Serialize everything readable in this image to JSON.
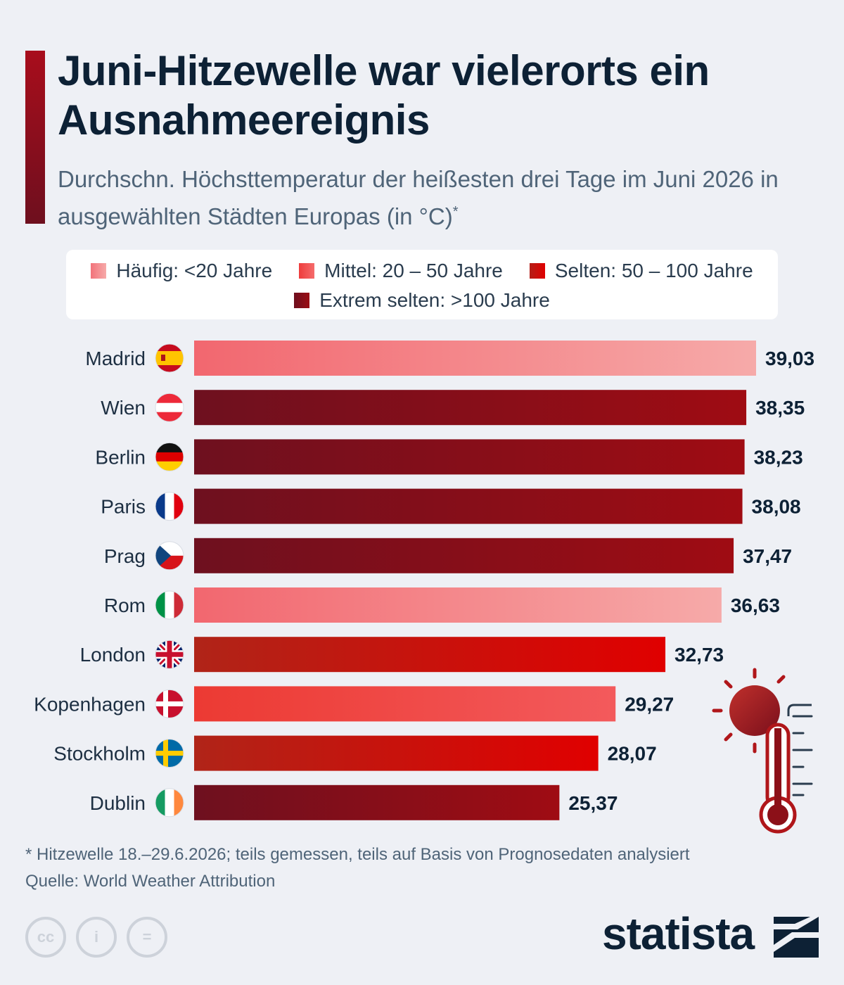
{
  "header": {
    "title": "Juni-Hitzewelle war vielerorts ein Ausnahmeereignis",
    "subtitle": "Durchschn. Höchsttemperatur der heißesten drei Tage im Juni 2026 in ausgewählten Städten Europas (in °C)",
    "subtitle_mark": "*"
  },
  "legend": [
    {
      "label": "Häufig: <20 Jahre",
      "color": "#f2737b"
    },
    {
      "label": "Mittel: 20 – 50 Jahre",
      "color": "#ee3d3d"
    },
    {
      "label": "Selten: 50 – 100 Jahre",
      "color": "#c8170f"
    },
    {
      "label": "Extrem selten: >100 Jahre",
      "color": "#7a111d"
    }
  ],
  "chart_data": {
    "type": "bar",
    "orientation": "horizontal",
    "categories": [
      "Madrid",
      "Wien",
      "Berlin",
      "Paris",
      "Prag",
      "Rom",
      "London",
      "Kopenhagen",
      "Stockholm",
      "Dublin"
    ],
    "values": [
      39.03,
      38.35,
      38.23,
      38.08,
      37.47,
      36.63,
      32.73,
      29.27,
      28.07,
      25.37
    ],
    "value_labels": [
      "39,03",
      "38,35",
      "38,23",
      "38,08",
      "37,47",
      "36,63",
      "32,73",
      "29,27",
      "28,07",
      "25,37"
    ],
    "rarity": [
      "Häufig",
      "Extrem selten",
      "Extrem selten",
      "Extrem selten",
      "Extrem selten",
      "Häufig",
      "Selten",
      "Mittel",
      "Selten",
      "Extrem selten"
    ],
    "flags": [
      "spain-flag-icon",
      "austria-flag-icon",
      "germany-flag-icon",
      "france-flag-icon",
      "czechia-flag-icon",
      "italy-flag-icon",
      "uk-flag-icon",
      "denmark-flag-icon",
      "sweden-flag-icon",
      "ireland-flag-icon"
    ],
    "xlim": [
      0,
      39.03
    ],
    "grid": false
  },
  "footnote": "* Hitzewelle 18.–29.6.2026; teils gemessen, teils auf Basis von Prognosedaten analysiert",
  "source": "Quelle: World Weather Attribution",
  "license_icons": [
    "cc-icon",
    "attribution-icon",
    "no-derivatives-icon"
  ],
  "license_glyphs": [
    "cc",
    "i",
    "="
  ],
  "brand": "statista"
}
